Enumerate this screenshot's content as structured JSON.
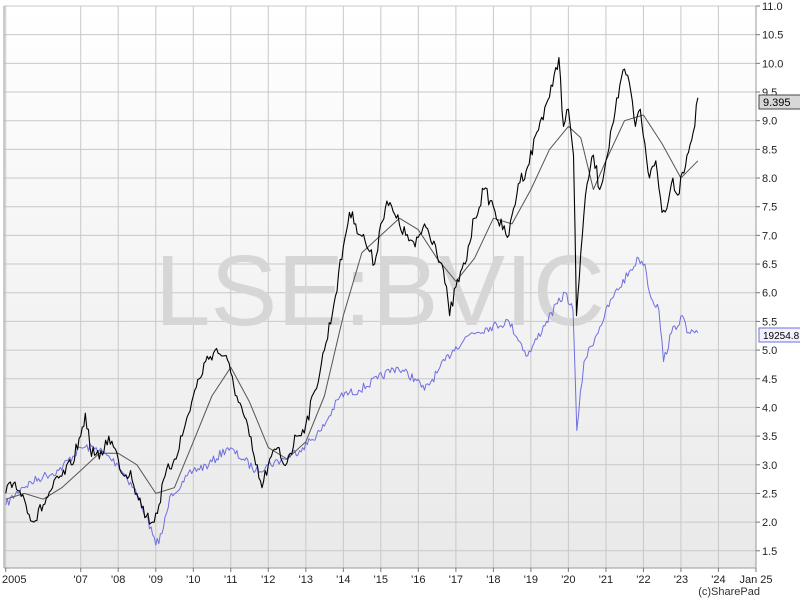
{
  "watermark": "LSE:BVIC",
  "credit": "(c)SharePad",
  "colors": {
    "price": "#000000",
    "moving_average": "#555555",
    "index": "#6f6fe0",
    "grid": "#c8c8c8",
    "badge_price_fill": "#d8d8d8",
    "badge_index_fill": "#f2f2ff"
  },
  "chart_data": {
    "type": "line",
    "x_tick_labels": [
      "2005",
      "'07",
      "'08",
      "'09",
      "'10",
      "'11",
      "'12",
      "'13",
      "'14",
      "'15",
      "'16",
      "'17",
      "'18",
      "'19",
      "'20",
      "'21",
      "'22",
      "'23",
      "'24",
      "Jan 25"
    ],
    "x_tick_dates": [
      "2005-01-01",
      "2007-01-01",
      "2008-01-01",
      "2009-01-01",
      "2010-01-01",
      "2011-01-01",
      "2012-01-01",
      "2013-01-01",
      "2014-01-01",
      "2015-01-01",
      "2016-01-01",
      "2017-01-01",
      "2018-01-01",
      "2019-01-01",
      "2020-01-01",
      "2021-01-01",
      "2022-01-01",
      "2023-01-01",
      "2024-01-01",
      "2025-01-01"
    ],
    "xlim": [
      "2004-12-15",
      "2025-01-01"
    ],
    "y_tick_labels": [
      "1.5",
      "2.0",
      "2.5",
      "3.0",
      "3.5",
      "4.0",
      "4.5",
      "5.0",
      "5.5",
      "6.0",
      "6.5",
      "7.0",
      "7.5",
      "8.0",
      "8.5",
      "9.0",
      "9.5",
      "10.0",
      "10.5",
      "11.0"
    ],
    "ylim": [
      1.2,
      11.0
    ],
    "y_axis_position": "right",
    "grid": true,
    "last_price_label": "9.395",
    "last_index_label": "19254.8",
    "series": [
      {
        "role": "price",
        "x": [
          "2005-01-01",
          "2005-04-01",
          "2005-07-01",
          "2005-10-01",
          "2006-01-01",
          "2006-04-01",
          "2006-07-01",
          "2006-10-01",
          "2007-01-01",
          "2007-02-15",
          "2007-04-01",
          "2007-07-01",
          "2007-10-01",
          "2008-01-01",
          "2008-03-01",
          "2008-05-01",
          "2008-07-01",
          "2008-10-01",
          "2008-12-01",
          "2009-02-01",
          "2009-04-01",
          "2009-07-01",
          "2009-10-01",
          "2010-01-01",
          "2010-03-01",
          "2010-05-01",
          "2010-08-01",
          "2010-11-01",
          "2011-01-01",
          "2011-03-01",
          "2011-05-01",
          "2011-07-01",
          "2011-09-01",
          "2011-11-01",
          "2012-01-01",
          "2012-04-01",
          "2012-06-01",
          "2012-08-01",
          "2012-10-01",
          "2013-01-01",
          "2013-04-01",
          "2013-07-01",
          "2013-10-01",
          "2014-01-01",
          "2014-03-01",
          "2014-05-01",
          "2014-08-01",
          "2014-11-01",
          "2015-01-01",
          "2015-03-01",
          "2015-06-01",
          "2015-09-01",
          "2015-12-01",
          "2016-03-01",
          "2016-06-01",
          "2016-09-01",
          "2016-11-01",
          "2017-01-01",
          "2017-04-01",
          "2017-07-01",
          "2017-10-01",
          "2018-01-01",
          "2018-04-01",
          "2018-06-01",
          "2018-09-01",
          "2018-12-01",
          "2019-03-01",
          "2019-06-01",
          "2019-08-01",
          "2019-10-01",
          "2019-11-15",
          "2020-01-01",
          "2020-02-20",
          "2020-03-20",
          "2020-05-01",
          "2020-07-01",
          "2020-09-01",
          "2020-11-01",
          "2021-01-01",
          "2021-03-01",
          "2021-05-01",
          "2021-07-01",
          "2021-09-01",
          "2021-10-15",
          "2021-12-01",
          "2022-01-15",
          "2022-03-01",
          "2022-05-01",
          "2022-07-01",
          "2022-09-01",
          "2022-10-15",
          "2022-12-01",
          "2023-01-15",
          "2023-03-01",
          "2023-05-01",
          "2023-06-15"
        ],
        "values": [
          2.5,
          2.7,
          2.4,
          2.0,
          2.3,
          2.6,
          2.8,
          3.0,
          3.5,
          3.9,
          3.3,
          3.1,
          3.5,
          3.1,
          2.8,
          2.9,
          2.5,
          2.1,
          2.0,
          2.3,
          2.8,
          3.1,
          3.6,
          4.2,
          4.5,
          4.8,
          5.0,
          4.9,
          4.6,
          4.2,
          3.9,
          3.5,
          3.0,
          2.6,
          3.0,
          3.3,
          3.0,
          3.2,
          3.5,
          3.7,
          4.3,
          5.0,
          5.8,
          6.8,
          7.4,
          7.2,
          6.9,
          6.5,
          7.2,
          7.6,
          7.3,
          7.0,
          6.8,
          7.2,
          6.9,
          6.4,
          5.6,
          6.1,
          6.5,
          7.3,
          7.8,
          7.5,
          7.1,
          7.0,
          7.9,
          8.2,
          8.8,
          9.3,
          9.6,
          10.1,
          8.9,
          9.2,
          8.4,
          5.6,
          6.7,
          7.9,
          8.4,
          7.8,
          8.3,
          8.9,
          9.4,
          9.9,
          9.5,
          8.9,
          9.2,
          8.6,
          8.0,
          8.3,
          7.4,
          7.6,
          8.0,
          7.7,
          8.1,
          8.4,
          8.8,
          9.4
        ]
      },
      {
        "role": "moving_average",
        "x": [
          "2005-01-01",
          "2005-07-01",
          "2006-01-01",
          "2006-07-01",
          "2007-01-01",
          "2007-07-01",
          "2008-01-01",
          "2008-07-01",
          "2009-01-01",
          "2009-07-01",
          "2010-01-01",
          "2010-07-01",
          "2011-01-01",
          "2011-07-01",
          "2012-01-01",
          "2012-07-01",
          "2013-01-01",
          "2013-07-01",
          "2014-01-01",
          "2014-07-01",
          "2015-01-01",
          "2015-07-01",
          "2016-01-01",
          "2016-07-01",
          "2017-01-01",
          "2017-07-01",
          "2018-01-01",
          "2018-07-01",
          "2019-01-01",
          "2019-07-01",
          "2020-01-01",
          "2020-05-01",
          "2020-09-01",
          "2021-01-01",
          "2021-07-01",
          "2022-01-01",
          "2022-07-01",
          "2023-01-01",
          "2023-06-15"
        ],
        "values": [
          2.4,
          2.5,
          2.4,
          2.6,
          2.9,
          3.2,
          3.2,
          3.0,
          2.5,
          2.6,
          3.4,
          4.2,
          4.7,
          4.1,
          3.3,
          3.1,
          3.4,
          4.2,
          5.6,
          6.7,
          7.0,
          7.3,
          7.1,
          6.6,
          6.2,
          6.6,
          7.3,
          7.2,
          7.8,
          8.5,
          8.9,
          8.7,
          7.8,
          8.3,
          9.0,
          9.1,
          8.6,
          8.0,
          8.3
        ]
      },
      {
        "role": "index",
        "x": [
          "2005-01-01",
          "2005-06-01",
          "2006-01-01",
          "2006-06-01",
          "2007-01-01",
          "2007-06-01",
          "2008-01-01",
          "2008-06-01",
          "2008-10-01",
          "2009-01-01",
          "2009-03-01",
          "2009-06-01",
          "2009-10-01",
          "2010-01-01",
          "2010-06-01",
          "2010-12-01",
          "2011-05-01",
          "2011-09-01",
          "2012-01-01",
          "2012-06-01",
          "2012-12-01",
          "2013-06-01",
          "2013-12-01",
          "2014-06-01",
          "2014-12-01",
          "2015-06-01",
          "2015-12-01",
          "2016-03-01",
          "2016-07-01",
          "2016-12-01",
          "2017-06-01",
          "2017-12-01",
          "2018-06-01",
          "2018-12-01",
          "2019-06-01",
          "2019-12-01",
          "2020-02-15",
          "2020-03-23",
          "2020-06-01",
          "2020-11-01",
          "2021-03-01",
          "2021-09-01",
          "2021-11-15",
          "2022-01-15",
          "2022-03-01",
          "2022-06-01",
          "2022-07-15",
          "2022-10-01",
          "2023-01-15",
          "2023-03-01",
          "2023-06-15"
        ],
        "values": [
          2.3,
          2.6,
          2.8,
          2.9,
          3.3,
          3.3,
          3.0,
          2.6,
          2.1,
          1.6,
          1.8,
          2.5,
          2.7,
          2.9,
          3.0,
          3.3,
          3.1,
          2.9,
          3.0,
          3.1,
          3.3,
          3.6,
          4.2,
          4.3,
          4.5,
          4.7,
          4.5,
          4.3,
          4.6,
          5.0,
          5.3,
          5.4,
          5.5,
          4.9,
          5.5,
          6.0,
          5.7,
          3.6,
          4.8,
          5.4,
          5.9,
          6.4,
          6.6,
          6.5,
          6.0,
          5.7,
          4.8,
          5.3,
          5.6,
          5.3,
          5.3
        ]
      }
    ]
  }
}
